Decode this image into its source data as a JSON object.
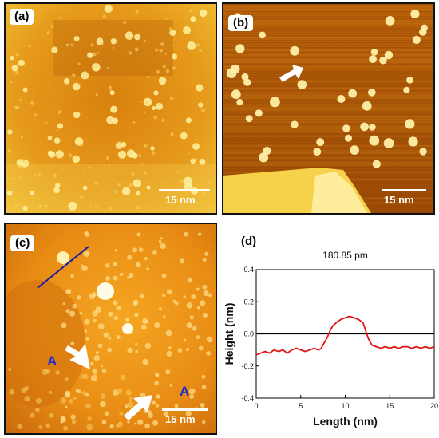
{
  "panels": {
    "a": {
      "label": "(a)",
      "scale": "15 nm"
    },
    "b": {
      "label": "(b)",
      "scale": "15 nm"
    },
    "c": {
      "label": "(c)",
      "scale": "15 nm",
      "site_label_1": "A",
      "site_label_2": "A"
    },
    "d": {
      "label": "(d)"
    }
  },
  "colors": {
    "afm_dark": "#8a3c05",
    "afm_mid": "#d97f10",
    "afm_light": "#fff6b0",
    "profile_line": "#e01515",
    "cut_line": "#1a1aa8",
    "site_label": "#1d2bd4"
  },
  "chart_data": {
    "type": "line",
    "title": "180.85 pm",
    "xlabel": "Length (nm)",
    "ylabel": "Height (nm)",
    "xlim": [
      0,
      20
    ],
    "ylim": [
      -0.4,
      0.4
    ],
    "xticks": [
      "0",
      "5",
      "10",
      "15",
      "20"
    ],
    "yticks": [
      "-0.4",
      "-0.2",
      "0.0",
      "0.2",
      "0.4"
    ],
    "reference_line_y": 0.0,
    "grid": false,
    "series": [
      {
        "x": [
          0,
          0.5,
          1,
          1.5,
          2,
          2.5,
          3,
          3.5,
          4,
          4.5,
          5,
          5.5,
          6,
          6.5,
          7,
          7.3,
          7.6,
          8,
          8.3,
          8.6,
          9,
          9.5,
          10,
          10.5,
          11,
          11.5,
          12,
          12.3,
          12.6,
          13,
          13.5,
          14,
          14.5,
          15,
          15.5,
          16,
          16.5,
          17,
          17.5,
          18,
          18.5,
          19,
          19.5,
          20
        ],
        "y": [
          -0.13,
          -0.12,
          -0.11,
          -0.12,
          -0.1,
          -0.11,
          -0.1,
          -0.12,
          -0.1,
          -0.09,
          -0.1,
          -0.11,
          -0.1,
          -0.09,
          -0.1,
          -0.09,
          -0.06,
          -0.02,
          0.02,
          0.05,
          0.07,
          0.09,
          0.1,
          0.11,
          0.1,
          0.09,
          0.07,
          0.02,
          -0.03,
          -0.07,
          -0.08,
          -0.09,
          -0.08,
          -0.09,
          -0.08,
          -0.09,
          -0.08,
          -0.08,
          -0.09,
          -0.08,
          -0.09,
          -0.08,
          -0.09,
          -0.08
        ]
      }
    ]
  }
}
